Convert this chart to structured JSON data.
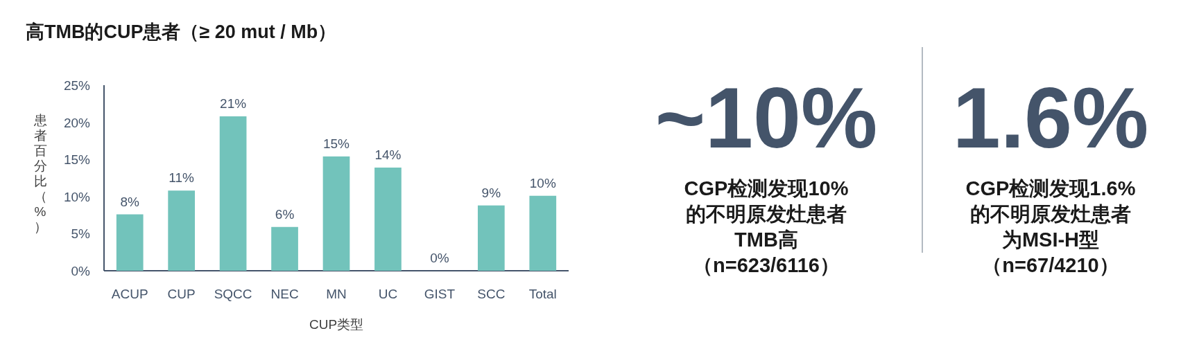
{
  "chart_data": [
    {
      "type": "bar",
      "title": "高TMB的CUP患者（≥ 20 mut / Mb）",
      "xlabel": "CUP类型",
      "ylabel": "患者百分比（%）",
      "categories": [
        "ACUP",
        "CUP",
        "SQCC",
        "NEC",
        "MN",
        "UC",
        "GIST",
        "SCC",
        "Total"
      ],
      "values": [
        7.6,
        10.8,
        20.8,
        5.9,
        15.4,
        13.9,
        0,
        8.8,
        10.1
      ],
      "value_labels": [
        "8%",
        "11%",
        "21%",
        "6%",
        "15%",
        "14%",
        "0%",
        "9%",
        "10%"
      ],
      "color": "#72c3bb",
      "ylim": [
        0,
        25
      ],
      "yticks": [
        {
          "value": 0,
          "label": "0%"
        },
        {
          "value": 5,
          "label": "5%"
        },
        {
          "value": 10,
          "label": "10%"
        },
        {
          "value": 15,
          "label": "15%"
        },
        {
          "value": 20,
          "label": "20%"
        },
        {
          "value": 25,
          "label": "25%"
        }
      ]
    },
    {
      "type": "other",
      "title": "~10%",
      "annotations": [
        "CGP检测发现10%",
        "的不明原发灶患者",
        "TMB高",
        "（n=623/6116）"
      ]
    },
    {
      "type": "other",
      "title": "1.6%",
      "annotations": [
        "CGP检测发现1.6%",
        "的不明原发灶患者",
        "为MSI-H型",
        "（n=67/4210）"
      ]
    }
  ]
}
